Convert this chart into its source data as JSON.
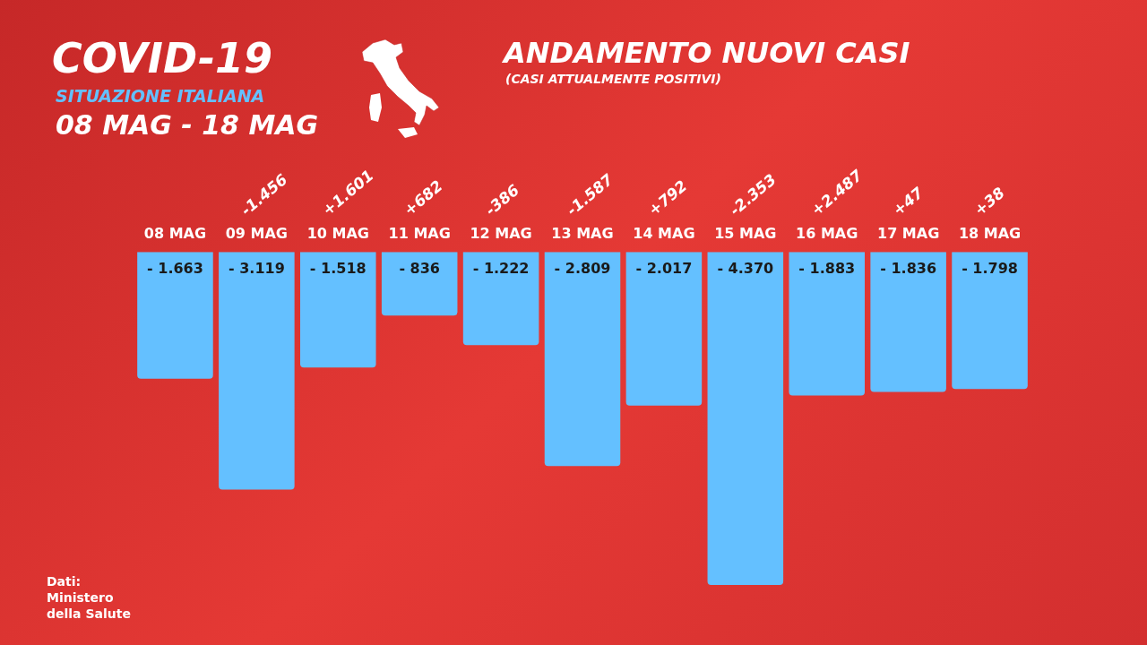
{
  "chart_data": {
    "type": "bar",
    "title": "ANDAMENTO NUOVI CASI",
    "subtitle": "(CASI ATTUALMENTE POSITIVI)",
    "categories": [
      "08 MAG",
      "09 MAG",
      "10 MAG",
      "11 MAG",
      "12 MAG",
      "13 MAG",
      "14 MAG",
      "15 MAG",
      "16 MAG",
      "17 MAG",
      "18 MAG"
    ],
    "values": [
      -1663,
      -3119,
      -1518,
      -836,
      -1222,
      -2809,
      -2017,
      -4370,
      -1883,
      -1836,
      -1798
    ],
    "value_labels": [
      "- 1.663",
      "- 3.119",
      "- 1.518",
      "- 836",
      "- 1.222",
      "- 2.809",
      "- 2.017",
      "- 4.370",
      "- 1.883",
      "- 1.836",
      "- 1.798"
    ],
    "color": "#64c0ff",
    "grid": false,
    "legend": false,
    "annotations": [
      "COVID-19",
      "SITUAZIONE ITALIANA",
      "08 MAG - 18 MAG",
      "-1.456",
      "+1.601",
      "+682",
      "-386",
      "-1.587",
      "+792",
      "-2.353",
      "+2.487",
      "+47",
      "+38",
      "Dati:\nMinistero\ndella Salute"
    ]
  }
}
